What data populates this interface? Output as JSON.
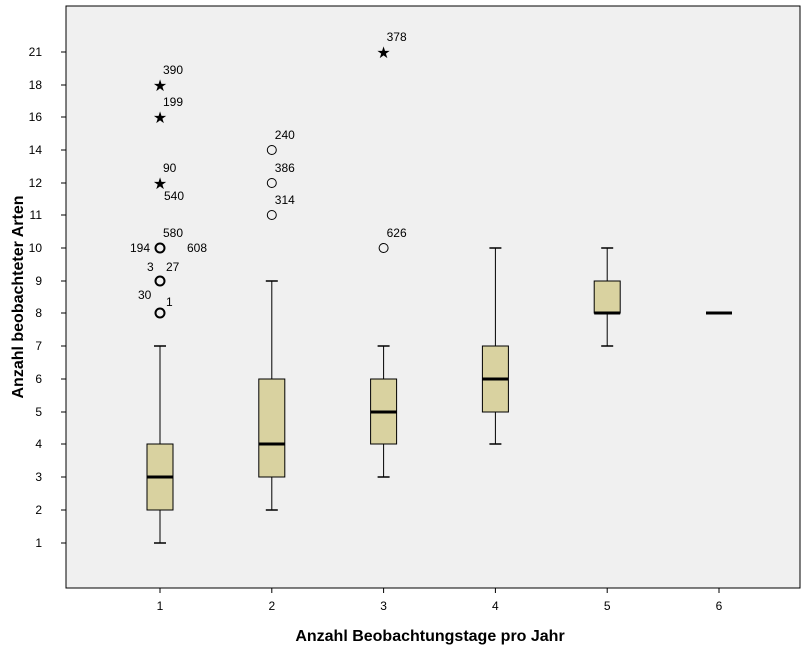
{
  "chart_data": {
    "type": "boxplot",
    "xlabel": "Anzahl Beobachtungstage pro Jahr",
    "ylabel": "Anzahl beobachteter Arten",
    "categories": [
      "1",
      "2",
      "3",
      "4",
      "5",
      "6"
    ],
    "y_ticks": [
      1,
      2,
      3,
      4,
      5,
      6,
      7,
      8,
      9,
      10,
      11,
      12,
      14,
      16,
      18,
      21
    ],
    "grid": false,
    "colors": {
      "plot_bg": "#f0f0f0",
      "box_fill": "#d9d2a0",
      "stroke": "#000000"
    },
    "boxes": [
      {
        "category": "1",
        "whisker_low": 1,
        "q1": 2,
        "median": 3,
        "q3": 4,
        "whisker_high": 7
      },
      {
        "category": "2",
        "whisker_low": 2,
        "q1": 3,
        "median": 4,
        "q3": 6,
        "whisker_high": 9
      },
      {
        "category": "3",
        "whisker_low": 3,
        "q1": 4,
        "median": 5,
        "q3": 6,
        "whisker_high": 7
      },
      {
        "category": "4",
        "whisker_low": 4,
        "q1": 5,
        "median": 6,
        "q3": 7,
        "whisker_high": 10
      },
      {
        "category": "5",
        "whisker_low": 7,
        "q1": 8,
        "median": 8,
        "q3": 9,
        "whisker_high": 10
      },
      {
        "category": "6",
        "whisker_low": 8,
        "q1": 8,
        "median": 8,
        "q3": 8,
        "whisker_high": 8
      }
    ],
    "outliers": [
      {
        "category": "1",
        "value": 18,
        "marker": "star",
        "labels": [
          "390"
        ]
      },
      {
        "category": "1",
        "value": 16,
        "marker": "star",
        "labels": [
          "199"
        ]
      },
      {
        "category": "1",
        "value": 12,
        "marker": "star",
        "labels": [
          "90",
          "540"
        ]
      },
      {
        "category": "1",
        "value": 10,
        "marker": "circle",
        "labels": [
          "580",
          "194",
          "608"
        ]
      },
      {
        "category": "1",
        "value": 9,
        "marker": "circle",
        "labels": [
          "3",
          "27"
        ]
      },
      {
        "category": "1",
        "value": 8,
        "marker": "circle",
        "labels": [
          "30",
          "1"
        ]
      },
      {
        "category": "2",
        "value": 14,
        "marker": "circle",
        "labels": [
          "240"
        ]
      },
      {
        "category": "2",
        "value": 12,
        "marker": "circle",
        "labels": [
          "386"
        ]
      },
      {
        "category": "2",
        "value": 11,
        "marker": "circle",
        "labels": [
          "314"
        ]
      },
      {
        "category": "3",
        "value": 21,
        "marker": "star",
        "labels": [
          "378"
        ]
      },
      {
        "category": "3",
        "value": 10,
        "marker": "circle",
        "labels": [
          "626"
        ]
      }
    ]
  }
}
